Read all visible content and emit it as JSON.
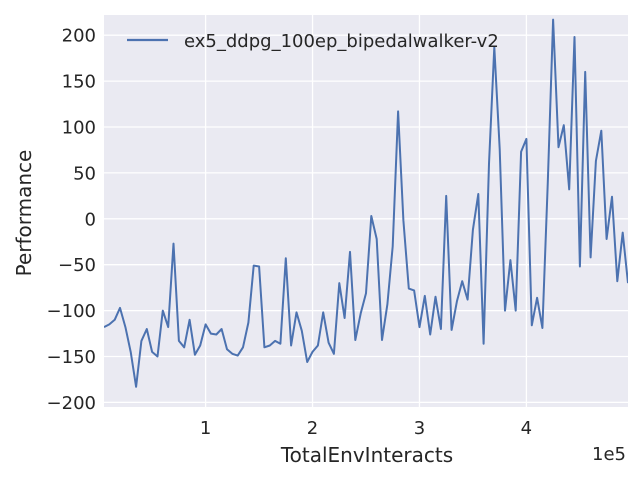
{
  "chart_data": {
    "type": "line",
    "xlabel": "TotalEnvInteracts",
    "ylabel": "Performance",
    "x_offset_label": "1e5",
    "xlim": [
      0.05,
      4.95
    ],
    "ylim": [
      -205,
      222
    ],
    "x_ticks": [
      1,
      2,
      3,
      4
    ],
    "x_tick_labels": [
      "1",
      "2",
      "3",
      "4"
    ],
    "y_ticks": [
      -200,
      -150,
      -100,
      -50,
      0,
      50,
      100,
      150,
      200
    ],
    "y_tick_labels": [
      "−200",
      "−150",
      "−100",
      "−50",
      "0",
      "50",
      "100",
      "150",
      "200"
    ],
    "grid": true,
    "legend_position": "upper-left",
    "colors": {
      "background": "#eaeaf2",
      "grid": "#ffffff",
      "series": "#4c72b0",
      "text": "#262626"
    },
    "series": [
      {
        "name": "ex5_ddpg_100ep_bipedalwalker-v2",
        "x": [
          0.05,
          0.1,
          0.15,
          0.2,
          0.25,
          0.3,
          0.35,
          0.4,
          0.45,
          0.5,
          0.55,
          0.6,
          0.65,
          0.7,
          0.75,
          0.8,
          0.85,
          0.9,
          0.95,
          1.0,
          1.05,
          1.1,
          1.15,
          1.2,
          1.25,
          1.3,
          1.35,
          1.4,
          1.45,
          1.5,
          1.55,
          1.6,
          1.65,
          1.7,
          1.75,
          1.8,
          1.85,
          1.9,
          1.95,
          2.0,
          2.05,
          2.1,
          2.15,
          2.2,
          2.25,
          2.3,
          2.35,
          2.4,
          2.45,
          2.5,
          2.55,
          2.6,
          2.65,
          2.7,
          2.75,
          2.8,
          2.85,
          2.9,
          2.95,
          3.0,
          3.05,
          3.1,
          3.15,
          3.2,
          3.25,
          3.3,
          3.35,
          3.4,
          3.45,
          3.5,
          3.55,
          3.6,
          3.65,
          3.7,
          3.75,
          3.8,
          3.85,
          3.9,
          3.95,
          4.0,
          4.05,
          4.1,
          4.15,
          4.2,
          4.25,
          4.3,
          4.35,
          4.4,
          4.45,
          4.5,
          4.55,
          4.6,
          4.65,
          4.7,
          4.75,
          4.8,
          4.85,
          4.9,
          4.95
        ],
        "y": [
          -118,
          -115,
          -110,
          -97,
          -118,
          -145,
          -183,
          -133,
          -120,
          -145,
          -150,
          -100,
          -118,
          -27,
          -133,
          -140,
          -110,
          -148,
          -138,
          -115,
          -125,
          -126,
          -120,
          -142,
          -147,
          -149,
          -140,
          -113,
          -51,
          -52,
          -140,
          -138,
          -133,
          -136,
          -43,
          -138,
          -102,
          -122,
          -156,
          -145,
          -138,
          -102,
          -135,
          -147,
          -70,
          -108,
          -36,
          -132,
          -103,
          -81,
          3,
          -22,
          -132,
          -93,
          -30,
          117,
          -2,
          -76,
          -78,
          -118,
          -84,
          -126,
          -85,
          -120,
          25,
          -121,
          -90,
          -68,
          -88,
          -12,
          27,
          -136,
          60,
          187,
          76,
          -100,
          -45,
          -100,
          73,
          87,
          -116,
          -86,
          -119,
          40,
          217,
          78,
          102,
          32,
          198,
          -52,
          160,
          -42,
          63,
          96,
          -22,
          24,
          -68,
          -15,
          -70
        ]
      }
    ]
  }
}
